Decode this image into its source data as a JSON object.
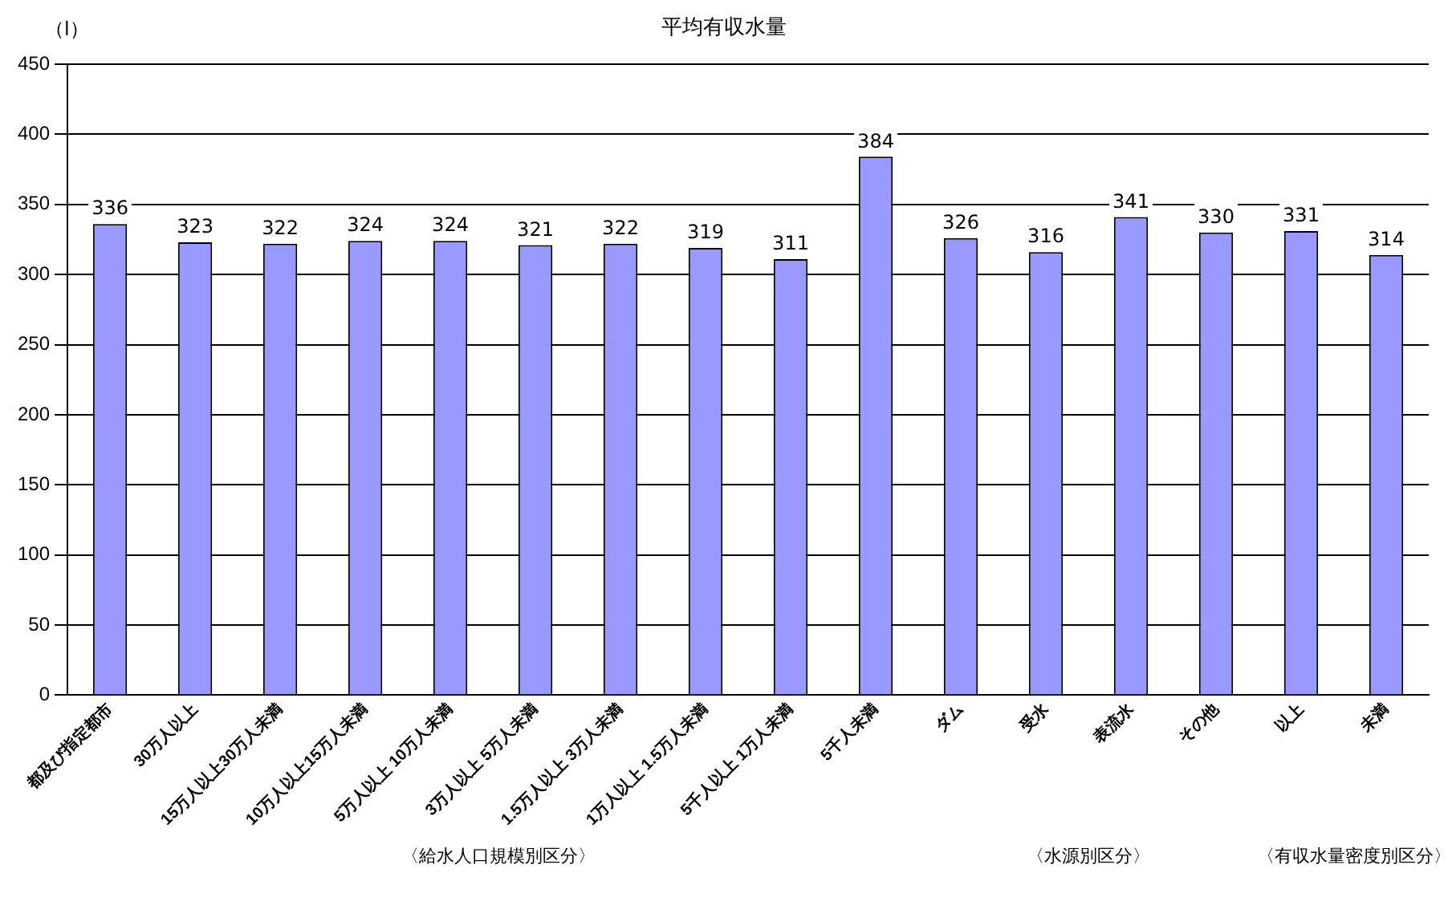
{
  "chart_data": {
    "type": "bar",
    "title": "平均有収水量",
    "ylabel": "（l）",
    "categories": [
      "都及び指定都市",
      "30万人以上",
      "15万人以上30万人未満",
      "10万人以上15万人未満",
      "5万人以上 10万人未満",
      "3万人以上 5万人未満",
      "1.5万人以上 3万人未満",
      "1万人以上 1.5万人未満",
      "5千人以上 1万人未満",
      "5千人未満",
      "ダム",
      "受水",
      "表流水",
      "その他",
      "以上",
      "未満"
    ],
    "values": [
      336,
      323,
      322,
      324,
      324,
      321,
      322,
      319,
      311,
      384,
      326,
      316,
      341,
      330,
      331,
      314
    ],
    "color": "#9999ff",
    "ylim": [
      0,
      450
    ],
    "yticks": [
      0,
      50,
      100,
      150,
      200,
      250,
      300,
      350,
      400,
      450
    ],
    "grid": "y",
    "data_labels": true,
    "annotations": [
      "〈給水人口規模別区分〉",
      "〈水源別区分〉",
      "〈有収水量密度別区分〉"
    ]
  }
}
